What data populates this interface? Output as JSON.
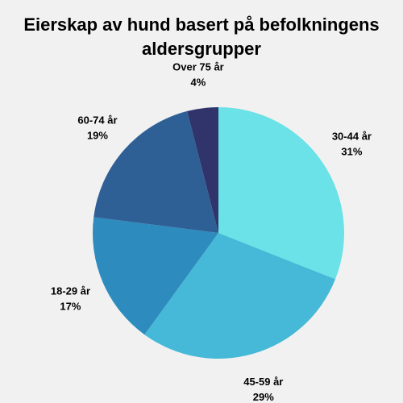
{
  "chart_data": {
    "type": "pie",
    "title_lines": [
      "Eierskap av hund basert på befolkningens",
      "aldersgrupper"
    ],
    "slices": [
      {
        "label": "30-44 år",
        "value": 31,
        "value_label": "31%",
        "color": "#6ae2e7"
      },
      {
        "label": "45-59 år",
        "value": 29,
        "value_label": "29%",
        "color": "#45b9d7"
      },
      {
        "label": "18-29 år",
        "value": 17,
        "value_label": "17%",
        "color": "#2d8cbd"
      },
      {
        "label": "60-74 år",
        "value": 19,
        "value_label": "19%",
        "color": "#2e6096"
      },
      {
        "label": "Over 75 år",
        "value": 4,
        "value_label": "4%",
        "color": "#31346a"
      }
    ],
    "start_angle_deg": 0,
    "direction": "clockwise",
    "legend": "none"
  }
}
